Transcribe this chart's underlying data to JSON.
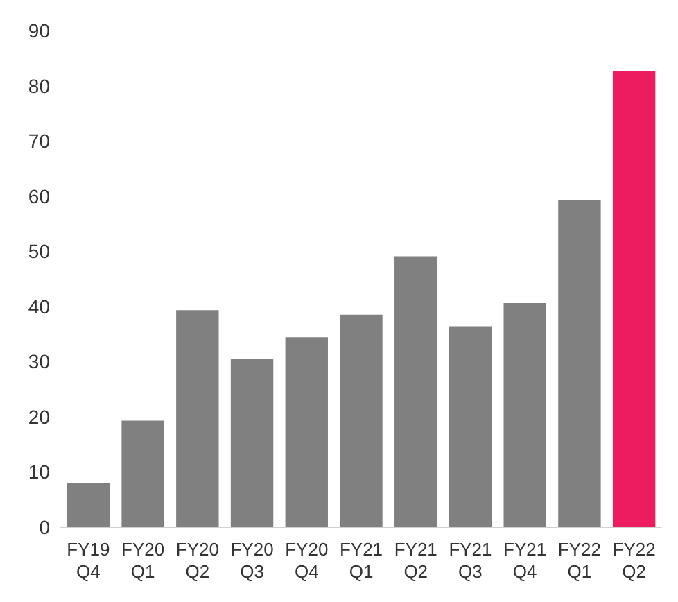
{
  "chart_data": {
    "type": "bar",
    "categories": [
      "FY19 Q4",
      "FY20 Q1",
      "FY20 Q2",
      "FY20 Q3",
      "FY20 Q4",
      "FY21 Q1",
      "FY21 Q2",
      "FY21 Q3",
      "FY21 Q4",
      "FY22 Q1",
      "FY22 Q2"
    ],
    "values": [
      8,
      19.3,
      39.3,
      30.5,
      34.4,
      38.5,
      49.1,
      36.4,
      40.6,
      59.3,
      82.6
    ],
    "colors": [
      "#808080",
      "#808080",
      "#808080",
      "#808080",
      "#808080",
      "#808080",
      "#808080",
      "#808080",
      "#808080",
      "#808080",
      "#ed1b5f"
    ],
    "ylim": [
      0,
      90
    ],
    "yticks": [
      0,
      10,
      20,
      30,
      40,
      50,
      60,
      70,
      80,
      90
    ],
    "grid": false
  }
}
